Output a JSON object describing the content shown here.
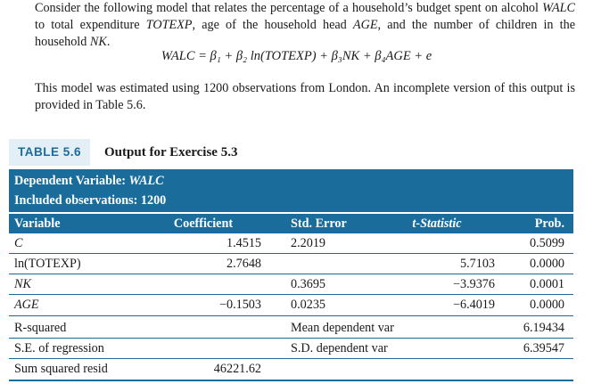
{
  "intro": {
    "p1_a": "Consider the following model that relates the percentage of a household’s budget spent on alcohol ",
    "p1_walc": "WALC",
    "p1_b": " to total expenditure ",
    "p1_totexp": "TOTEXP",
    "p1_c": ", age of the household head ",
    "p1_age": "AGE",
    "p1_d": ", and the number of children in the household ",
    "p1_nk": "NK",
    "p1_e": ".",
    "equation": "WALC = β₁ + β₂ ln(TOTEXP) + β₃NK + β₄AGE + e",
    "p2": "This model was estimated using 1200 observations from London. An incomplete version of this output is provided in Table 5.6."
  },
  "table": {
    "number": "TABLE 5.6",
    "title": "Output for Exercise 5.3",
    "dep_label": "Dependent Variable: ",
    "dep_var": "WALC",
    "obs": "Included observations: 1200",
    "headers": {
      "variable": "Variable",
      "coefficient": "Coefficient",
      "std_error": "Std. Error",
      "t_stat": "t-Statistic",
      "prob": "Prob."
    },
    "rows": [
      {
        "variable": "C",
        "coefficient": "1.4515",
        "std_error": "2.2019",
        "t_stat": "",
        "prob": "0.5099"
      },
      {
        "variable": "ln(TOTEXP)",
        "coefficient": "2.7648",
        "std_error": "",
        "t_stat": "5.7103",
        "prob": "0.0000"
      },
      {
        "variable": "NK",
        "coefficient": "",
        "std_error": "0.3695",
        "t_stat": "−3.9376",
        "prob": "0.0001"
      },
      {
        "variable": "AGE",
        "coefficient": "−0.1503",
        "std_error": "0.0235",
        "t_stat": "−6.4019",
        "prob": "0.0000"
      }
    ],
    "stats": [
      {
        "label": "R-squared",
        "value": "",
        "label2": "Mean dependent var",
        "value2": "6.19434"
      },
      {
        "label": "S.E. of regression",
        "value": "",
        "label2": "S.D. dependent var",
        "value2": "6.39547"
      },
      {
        "label": "Sum squared resid",
        "value": "46221.62",
        "label2": "",
        "value2": ""
      }
    ]
  }
}
